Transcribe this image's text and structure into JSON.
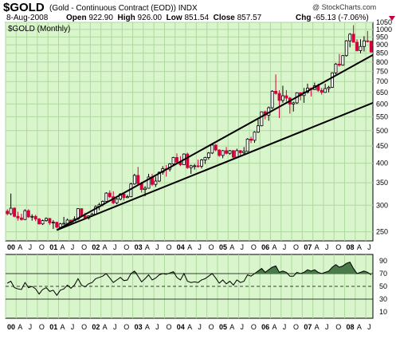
{
  "header": {
    "symbol": "$GOLD",
    "description": "(Gold - Continuous Contract (EOD))  INDX",
    "watermark": "@ StockCharts.com",
    "date": "8-Aug-2008",
    "open_label": "Open",
    "open": "922.90",
    "high_label": "High",
    "high": "926.00",
    "low_label": "Low",
    "low": "851.54",
    "close_label": "Close",
    "close": "857.57",
    "chg_label": "Chg",
    "chg": "-65.13 (-7.06%)"
  },
  "colors": {
    "panel_bg": "#d9f5cc",
    "grid": "#b0d8a0",
    "up": "#000000",
    "down": "#d4003c",
    "trendline": "#000000",
    "rsi_fill": "#4a7a4a"
  },
  "chart_data": [
    {
      "type": "candlestick",
      "title": "$GOLD (Monthly)",
      "y_scale": "log",
      "ylim": [
        235,
        1050
      ],
      "y_ticks": [
        1050,
        1000,
        950,
        900,
        850,
        800,
        750,
        700,
        650,
        600,
        550,
        500,
        450,
        400,
        350,
        300,
        250
      ],
      "x_tick_labels": [
        "00",
        "A",
        "J",
        "O",
        "01",
        "A",
        "J",
        "O",
        "02",
        "A",
        "J",
        "O",
        "03",
        "A",
        "J",
        "O",
        "04",
        "A",
        "J",
        "O",
        "05",
        "A",
        "J",
        "O",
        "06",
        "A",
        "J",
        "O",
        "07",
        "A",
        "J",
        "O",
        "08",
        "A",
        "J"
      ],
      "x_year_labels": [
        "00",
        "01",
        "02",
        "03",
        "04",
        "05",
        "06",
        "07",
        "08"
      ],
      "grid": true,
      "candles": [
        {
          "date": "2000-01",
          "o": 288,
          "h": 292,
          "l": 280,
          "c": 283
        },
        {
          "date": "2000-02",
          "o": 283,
          "h": 325,
          "l": 280,
          "c": 294
        },
        {
          "date": "2000-03",
          "o": 294,
          "h": 296,
          "l": 276,
          "c": 278
        },
        {
          "date": "2000-04",
          "o": 278,
          "h": 287,
          "l": 270,
          "c": 275
        },
        {
          "date": "2000-05",
          "o": 275,
          "h": 283,
          "l": 270,
          "c": 272
        },
        {
          "date": "2000-06",
          "o": 272,
          "h": 292,
          "l": 271,
          "c": 289
        },
        {
          "date": "2000-07",
          "o": 289,
          "h": 292,
          "l": 275,
          "c": 277
        },
        {
          "date": "2000-08",
          "o": 277,
          "h": 282,
          "l": 270,
          "c": 278
        },
        {
          "date": "2000-09",
          "o": 278,
          "h": 281,
          "l": 269,
          "c": 273
        },
        {
          "date": "2000-10",
          "o": 273,
          "h": 275,
          "l": 263,
          "c": 264
        },
        {
          "date": "2000-11",
          "o": 264,
          "h": 272,
          "l": 262,
          "c": 270
        },
        {
          "date": "2000-12",
          "o": 270,
          "h": 276,
          "l": 268,
          "c": 274
        },
        {
          "date": "2001-01",
          "o": 274,
          "h": 275,
          "l": 262,
          "c": 266
        },
        {
          "date": "2001-02",
          "o": 266,
          "h": 271,
          "l": 255,
          "c": 267
        },
        {
          "date": "2001-03",
          "o": 267,
          "h": 268,
          "l": 256,
          "c": 258
        },
        {
          "date": "2001-04",
          "o": 258,
          "h": 266,
          "l": 255,
          "c": 264
        },
        {
          "date": "2001-05",
          "o": 264,
          "h": 277,
          "l": 263,
          "c": 265
        },
        {
          "date": "2001-06",
          "o": 265,
          "h": 274,
          "l": 263,
          "c": 271
        },
        {
          "date": "2001-07",
          "o": 271,
          "h": 272,
          "l": 263,
          "c": 266
        },
        {
          "date": "2001-08",
          "o": 266,
          "h": 278,
          "l": 265,
          "c": 273
        },
        {
          "date": "2001-09",
          "o": 273,
          "h": 294,
          "l": 271,
          "c": 293
        },
        {
          "date": "2001-10",
          "o": 293,
          "h": 294,
          "l": 277,
          "c": 279
        },
        {
          "date": "2001-11",
          "o": 279,
          "h": 285,
          "l": 272,
          "c": 275
        },
        {
          "date": "2001-12",
          "o": 275,
          "h": 280,
          "l": 272,
          "c": 279
        },
        {
          "date": "2002-01",
          "o": 279,
          "h": 285,
          "l": 277,
          "c": 282
        },
        {
          "date": "2002-02",
          "o": 282,
          "h": 300,
          "l": 281,
          "c": 297
        },
        {
          "date": "2002-03",
          "o": 297,
          "h": 305,
          "l": 290,
          "c": 301
        },
        {
          "date": "2002-04",
          "o": 301,
          "h": 310,
          "l": 298,
          "c": 308
        },
        {
          "date": "2002-05",
          "o": 308,
          "h": 328,
          "l": 307,
          "c": 326
        },
        {
          "date": "2002-06",
          "o": 326,
          "h": 332,
          "l": 315,
          "c": 318
        },
        {
          "date": "2002-07",
          "o": 318,
          "h": 330,
          "l": 302,
          "c": 305
        },
        {
          "date": "2002-08",
          "o": 305,
          "h": 315,
          "l": 302,
          "c": 313
        },
        {
          "date": "2002-09",
          "o": 313,
          "h": 326,
          "l": 310,
          "c": 324
        },
        {
          "date": "2002-10",
          "o": 324,
          "h": 325,
          "l": 310,
          "c": 316
        },
        {
          "date": "2002-11",
          "o": 316,
          "h": 322,
          "l": 315,
          "c": 318
        },
        {
          "date": "2002-12",
          "o": 318,
          "h": 350,
          "l": 317,
          "c": 347
        },
        {
          "date": "2003-01",
          "o": 347,
          "h": 372,
          "l": 345,
          "c": 368
        },
        {
          "date": "2003-02",
          "o": 368,
          "h": 390,
          "l": 345,
          "c": 348
        },
        {
          "date": "2003-03",
          "o": 348,
          "h": 352,
          "l": 327,
          "c": 334
        },
        {
          "date": "2003-04",
          "o": 334,
          "h": 342,
          "l": 319,
          "c": 337
        },
        {
          "date": "2003-05",
          "o": 337,
          "h": 372,
          "l": 336,
          "c": 364
        },
        {
          "date": "2003-06",
          "o": 364,
          "h": 372,
          "l": 342,
          "c": 346
        },
        {
          "date": "2003-07",
          "o": 346,
          "h": 365,
          "l": 340,
          "c": 354
        },
        {
          "date": "2003-08",
          "o": 354,
          "h": 378,
          "l": 352,
          "c": 376
        },
        {
          "date": "2003-09",
          "o": 376,
          "h": 392,
          "l": 370,
          "c": 385
        },
        {
          "date": "2003-10",
          "o": 385,
          "h": 395,
          "l": 365,
          "c": 384
        },
        {
          "date": "2003-11",
          "o": 384,
          "h": 400,
          "l": 378,
          "c": 398
        },
        {
          "date": "2003-12",
          "o": 398,
          "h": 418,
          "l": 395,
          "c": 416
        },
        {
          "date": "2004-01",
          "o": 416,
          "h": 428,
          "l": 398,
          "c": 403
        },
        {
          "date": "2004-02",
          "o": 403,
          "h": 420,
          "l": 392,
          "c": 396
        },
        {
          "date": "2004-03",
          "o": 396,
          "h": 428,
          "l": 395,
          "c": 426
        },
        {
          "date": "2004-04",
          "o": 426,
          "h": 430,
          "l": 385,
          "c": 388
        },
        {
          "date": "2004-05",
          "o": 388,
          "h": 396,
          "l": 372,
          "c": 393
        },
        {
          "date": "2004-06",
          "o": 393,
          "h": 398,
          "l": 383,
          "c": 393
        },
        {
          "date": "2004-07",
          "o": 393,
          "h": 410,
          "l": 388,
          "c": 392
        },
        {
          "date": "2004-08",
          "o": 392,
          "h": 412,
          "l": 386,
          "c": 409
        },
        {
          "date": "2004-09",
          "o": 409,
          "h": 418,
          "l": 398,
          "c": 416
        },
        {
          "date": "2004-10",
          "o": 416,
          "h": 432,
          "l": 410,
          "c": 429
        },
        {
          "date": "2004-11",
          "o": 429,
          "h": 456,
          "l": 426,
          "c": 453
        },
        {
          "date": "2004-12",
          "o": 453,
          "h": 456,
          "l": 434,
          "c": 438
        },
        {
          "date": "2005-01",
          "o": 438,
          "h": 440,
          "l": 418,
          "c": 422
        },
        {
          "date": "2005-02",
          "o": 422,
          "h": 438,
          "l": 414,
          "c": 436
        },
        {
          "date": "2005-03",
          "o": 436,
          "h": 447,
          "l": 425,
          "c": 428
        },
        {
          "date": "2005-04",
          "o": 428,
          "h": 438,
          "l": 424,
          "c": 436
        },
        {
          "date": "2005-05",
          "o": 436,
          "h": 438,
          "l": 414,
          "c": 417
        },
        {
          "date": "2005-06",
          "o": 417,
          "h": 442,
          "l": 414,
          "c": 436
        },
        {
          "date": "2005-07",
          "o": 436,
          "h": 438,
          "l": 418,
          "c": 430
        },
        {
          "date": "2005-08",
          "o": 430,
          "h": 447,
          "l": 425,
          "c": 434
        },
        {
          "date": "2005-09",
          "o": 434,
          "h": 475,
          "l": 433,
          "c": 472
        },
        {
          "date": "2005-10",
          "o": 472,
          "h": 480,
          "l": 459,
          "c": 468
        },
        {
          "date": "2005-11",
          "o": 468,
          "h": 498,
          "l": 460,
          "c": 495
        },
        {
          "date": "2005-12",
          "o": 495,
          "h": 540,
          "l": 492,
          "c": 517
        },
        {
          "date": "2006-01",
          "o": 517,
          "h": 570,
          "l": 515,
          "c": 569
        },
        {
          "date": "2006-02",
          "o": 569,
          "h": 574,
          "l": 540,
          "c": 556
        },
        {
          "date": "2006-03",
          "o": 556,
          "h": 590,
          "l": 535,
          "c": 585
        },
        {
          "date": "2006-04",
          "o": 585,
          "h": 660,
          "l": 580,
          "c": 655
        },
        {
          "date": "2006-05",
          "o": 655,
          "h": 735,
          "l": 640,
          "c": 645
        },
        {
          "date": "2006-06",
          "o": 645,
          "h": 660,
          "l": 545,
          "c": 615
        },
        {
          "date": "2006-07",
          "o": 615,
          "h": 680,
          "l": 605,
          "c": 635
        },
        {
          "date": "2006-08",
          "o": 635,
          "h": 660,
          "l": 610,
          "c": 625
        },
        {
          "date": "2006-09",
          "o": 625,
          "h": 630,
          "l": 562,
          "c": 600
        },
        {
          "date": "2006-10",
          "o": 600,
          "h": 610,
          "l": 570,
          "c": 605
        },
        {
          "date": "2006-11",
          "o": 605,
          "h": 650,
          "l": 600,
          "c": 648
        },
        {
          "date": "2006-12",
          "o": 648,
          "h": 650,
          "l": 615,
          "c": 636
        },
        {
          "date": "2007-01",
          "o": 636,
          "h": 670,
          "l": 605,
          "c": 650
        },
        {
          "date": "2007-02",
          "o": 650,
          "h": 690,
          "l": 645,
          "c": 669
        },
        {
          "date": "2007-03",
          "o": 669,
          "h": 672,
          "l": 632,
          "c": 663
        },
        {
          "date": "2007-04",
          "o": 663,
          "h": 695,
          "l": 660,
          "c": 680
        },
        {
          "date": "2007-05",
          "o": 680,
          "h": 690,
          "l": 652,
          "c": 659
        },
        {
          "date": "2007-06",
          "o": 659,
          "h": 670,
          "l": 640,
          "c": 650
        },
        {
          "date": "2007-07",
          "o": 650,
          "h": 690,
          "l": 648,
          "c": 667
        },
        {
          "date": "2007-08",
          "o": 667,
          "h": 680,
          "l": 650,
          "c": 673
        },
        {
          "date": "2007-09",
          "o": 673,
          "h": 745,
          "l": 670,
          "c": 743
        },
        {
          "date": "2007-10",
          "o": 743,
          "h": 795,
          "l": 735,
          "c": 789
        },
        {
          "date": "2007-11",
          "o": 789,
          "h": 845,
          "l": 775,
          "c": 783
        },
        {
          "date": "2007-12",
          "o": 783,
          "h": 840,
          "l": 780,
          "c": 836
        },
        {
          "date": "2008-01",
          "o": 836,
          "h": 930,
          "l": 830,
          "c": 925
        },
        {
          "date": "2008-02",
          "o": 925,
          "h": 975,
          "l": 885,
          "c": 968
        },
        {
          "date": "2008-03",
          "o": 968,
          "h": 1030,
          "l": 915,
          "c": 916
        },
        {
          "date": "2008-04",
          "o": 916,
          "h": 935,
          "l": 860,
          "c": 865
        },
        {
          "date": "2008-05",
          "o": 865,
          "h": 935,
          "l": 850,
          "c": 890
        },
        {
          "date": "2008-06",
          "o": 890,
          "h": 955,
          "l": 860,
          "c": 925
        },
        {
          "date": "2008-07",
          "o": 925,
          "h": 990,
          "l": 915,
          "c": 923
        },
        {
          "date": "2008-08",
          "o": 922.9,
          "h": 926.0,
          "l": 851.54,
          "c": 857.57
        }
      ],
      "trendlines": [
        {
          "from": {
            "date": "2001-03",
            "value": 253
          },
          "to": {
            "date": "2008-08",
            "value": 840
          }
        },
        {
          "from": {
            "date": "2001-03",
            "value": 253
          },
          "to": {
            "date": "2008-08",
            "value": 605
          }
        }
      ]
    },
    {
      "type": "line",
      "indicator": "RSI",
      "ylim": [
        0,
        100
      ],
      "y_ticks": [
        90,
        70,
        50,
        30,
        10
      ],
      "reference_lines": [
        70,
        50,
        30
      ],
      "fill_above": 70,
      "x_tick_labels": [
        "00",
        "A",
        "J",
        "O",
        "01",
        "A",
        "J",
        "O",
        "02",
        "A",
        "J",
        "O",
        "03",
        "A",
        "J",
        "O",
        "04",
        "A",
        "J",
        "O",
        "05",
        "A",
        "J",
        "O",
        "06",
        "A",
        "J",
        "O",
        "07",
        "A",
        "J",
        "O",
        "08",
        "A",
        "J"
      ],
      "values": [
        55,
        58,
        48,
        46,
        45,
        56,
        48,
        50,
        46,
        38,
        45,
        48,
        42,
        44,
        36,
        44,
        46,
        52,
        47,
        52,
        62,
        52,
        49,
        54,
        56,
        62,
        64,
        66,
        70,
        63,
        56,
        60,
        64,
        59,
        60,
        70,
        74,
        66,
        57,
        62,
        68,
        60,
        63,
        68,
        70,
        69,
        71,
        73,
        64,
        60,
        70,
        58,
        56,
        57,
        56,
        60,
        62,
        66,
        70,
        63,
        55,
        60,
        54,
        58,
        52,
        60,
        56,
        58,
        68,
        66,
        70,
        74,
        78,
        72,
        76,
        80,
        82,
        72,
        74,
        72,
        66,
        66,
        72,
        70,
        72,
        76,
        74,
        76,
        72,
        70,
        72,
        74,
        80,
        84,
        80,
        82,
        86,
        88,
        78,
        70,
        72,
        74,
        72,
        68
      ]
    }
  ]
}
